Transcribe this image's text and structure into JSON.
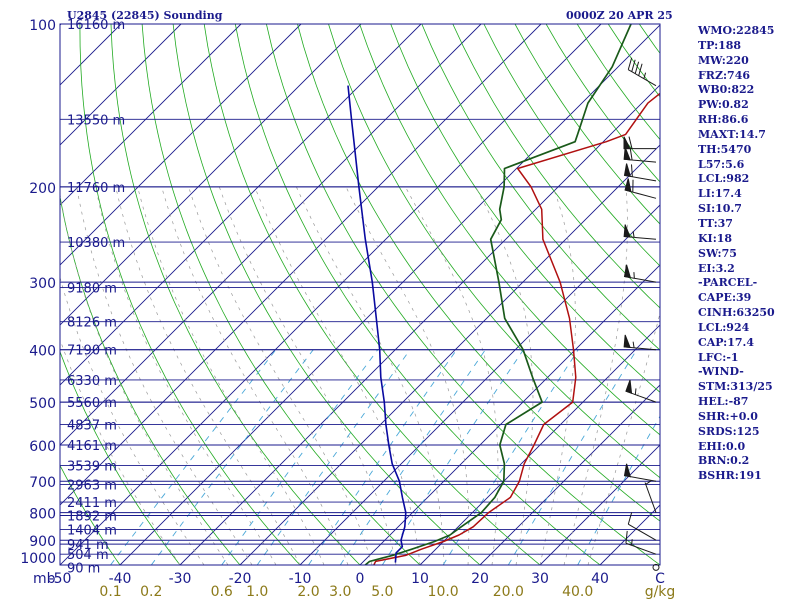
{
  "header": {
    "title": "U2845 (22845) Sounding",
    "time": "0000Z 20 APR 25"
  },
  "stats": [
    "WMO:22845",
    "TP:188",
    "MW:220",
    "FRZ:746",
    "WB0:822",
    "PW:0.82",
    "RH:86.6",
    "MAXT:14.7",
    "TH:5470",
    "L57:5.6",
    "LCL:982",
    "LI:17.4",
    "SI:10.7",
    "TT:37",
    "KI:18",
    "SW:75",
    "EI:3.2",
    "-PARCEL-",
    "CAPE:39",
    "CINH:63250",
    "LCL:924",
    "CAP:17.4",
    "LFC:-1",
    "-WIND-",
    "STM:313/25",
    "HEL:-87",
    "SHR:+0.0",
    "SRDS:125",
    "EHI:0.0",
    "BRN:0.2",
    "BSHR:191"
  ],
  "colors": {
    "background": "#ffffff",
    "isobar": "#1a1a8c",
    "isotherm": "#1a1a8c",
    "dry_adiabat": "#22aa22",
    "moist_adiabat": "#999999",
    "mixing_ratio": "#4aa8d8",
    "temperature": "#b01010",
    "dewpoint": "#1a5a1a",
    "parcel": "#0a0aa0",
    "axis_text": "#1a1a8c",
    "mixing_text": "#8c7a1a"
  },
  "chart_data": {
    "type": "line",
    "title": "U2845 (22845) Sounding",
    "subtitle": "0000Z 20 APR 25",
    "xlabel": "C",
    "pressure_unit": "mb",
    "mixing_ratio_unit": "g/kg",
    "xlim": [
      -50,
      50
    ],
    "ylim": [
      1000,
      100
    ],
    "pressure_ticks": [
      100,
      200,
      300,
      400,
      500,
      600,
      700,
      800,
      900,
      1000
    ],
    "temperature_ticks": [
      -50,
      -40,
      -30,
      -20,
      -10,
      0,
      10,
      20,
      30,
      40
    ],
    "temperature_tick_labels": [
      "-50",
      "-40",
      "-30",
      "-20",
      "-10",
      "0",
      "10",
      "20",
      "30",
      "40"
    ],
    "mixing_ratio_ticks": [
      0.1,
      0.2,
      0.6,
      1.0,
      2.0,
      3.0,
      5.0,
      10.0,
      20.0,
      40.0
    ],
    "mixing_ratio_labels": [
      "0.1",
      "0.2",
      "0.6",
      "1.0",
      "2.0",
      "3.0",
      "5.0",
      "10.0",
      "20.0",
      "40.0"
    ],
    "height_levels": [
      {
        "p": 1010,
        "label": "90 m"
      },
      {
        "p": 955,
        "label": "504 m"
      },
      {
        "p": 915,
        "label": "941 m"
      },
      {
        "p": 860,
        "label": "1404 m"
      },
      {
        "p": 810,
        "label": "1892 m"
      },
      {
        "p": 765,
        "label": "2411 m"
      },
      {
        "p": 710,
        "label": "2963 m"
      },
      {
        "p": 655,
        "label": "3539 m"
      },
      {
        "p": 600,
        "label": "4161 m"
      },
      {
        "p": 550,
        "label": "4837 m"
      },
      {
        "p": 500,
        "label": "5560 m"
      },
      {
        "p": 455,
        "label": "6330 m"
      },
      {
        "p": 400,
        "label": "7190 m"
      },
      {
        "p": 355,
        "label": "8126 m"
      },
      {
        "p": 307,
        "label": "9180 m"
      },
      {
        "p": 253,
        "label": "10380 m"
      },
      {
        "p": 200,
        "label": "11760 m"
      },
      {
        "p": 150,
        "label": "13550 m"
      },
      {
        "p": 100,
        "label": "16160 m"
      }
    ],
    "series": [
      {
        "key": "temperature",
        "points": [
          [
            1010,
            2.5
          ],
          [
            985,
            2.0
          ],
          [
            960,
            6.0
          ],
          [
            935,
            7.6
          ],
          [
            905,
            10.0
          ],
          [
            880,
            11.5
          ],
          [
            850,
            12.5
          ],
          [
            800,
            12.7
          ],
          [
            750,
            13.8
          ],
          [
            700,
            12.6
          ],
          [
            650,
            10.5
          ],
          [
            600,
            9.0
          ],
          [
            550,
            7.2
          ],
          [
            500,
            8.3
          ],
          [
            450,
            4.7
          ],
          [
            400,
            -0.3
          ],
          [
            350,
            -6.2
          ],
          [
            300,
            -13.8
          ],
          [
            250,
            -23.8
          ],
          [
            220,
            -29.0
          ],
          [
            200,
            -34.5
          ],
          [
            185,
            -39.8
          ],
          [
            165,
            -29.5
          ],
          [
            160,
            -27.5
          ],
          [
            140,
            -29.0
          ],
          [
            120,
            -27.5
          ],
          [
            100,
            -28.7
          ]
        ]
      },
      {
        "key": "dewpoint",
        "points": [
          [
            1010,
            0.8
          ],
          [
            985,
            1.0
          ],
          [
            960,
            3.8
          ],
          [
            935,
            6.0
          ],
          [
            905,
            8.5
          ],
          [
            880,
            10.0
          ],
          [
            850,
            10.5
          ],
          [
            800,
            11.5
          ],
          [
            750,
            11.2
          ],
          [
            700,
            10.0
          ],
          [
            650,
            7.2
          ],
          [
            600,
            3.3
          ],
          [
            550,
            0.9
          ],
          [
            500,
            3.2
          ],
          [
            450,
            -2.5
          ],
          [
            400,
            -8.7
          ],
          [
            350,
            -17.0
          ],
          [
            300,
            -24.0
          ],
          [
            250,
            -32.5
          ],
          [
            230,
            -34.0
          ],
          [
            220,
            -36.0
          ],
          [
            200,
            -39.0
          ],
          [
            185,
            -42.0
          ],
          [
            165,
            -34.7
          ],
          [
            160,
            -35.5
          ],
          [
            140,
            -39.0
          ],
          [
            120,
            -41.0
          ],
          [
            100,
            -45.0
          ]
        ]
      },
      {
        "key": "parcel",
        "points": [
          [
            990,
            5.5
          ],
          [
            950,
            4.0
          ],
          [
            925,
            4.0
          ],
          [
            900,
            2.7
          ],
          [
            850,
            1.1
          ],
          [
            800,
            -1.1
          ],
          [
            750,
            -4.2
          ],
          [
            700,
            -7.4
          ],
          [
            650,
            -11.5
          ],
          [
            600,
            -15.2
          ],
          [
            550,
            -19.1
          ],
          [
            500,
            -23.1
          ],
          [
            450,
            -27.8
          ],
          [
            400,
            -32.6
          ],
          [
            350,
            -38.4
          ],
          [
            300,
            -45.1
          ],
          [
            250,
            -53.4
          ],
          [
            200,
            -63.2
          ],
          [
            150,
            -75.7
          ],
          [
            130,
            -81.9
          ]
        ]
      }
    ],
    "wind_barbs": [
      {
        "p": 1010,
        "speed_kt": 0,
        "calm": true
      },
      {
        "p": 955,
        "dir": 290,
        "speed_kt": 15
      },
      {
        "p": 900,
        "dir": 300,
        "speed_kt": 10
      },
      {
        "p": 800,
        "dir": 340,
        "speed_kt": 5
      },
      {
        "p": 700,
        "dir": 280,
        "speed_kt": 50
      },
      {
        "p": 500,
        "dir": 290,
        "speed_kt": 55
      },
      {
        "p": 400,
        "dir": 275,
        "speed_kt": 55
      },
      {
        "p": 300,
        "dir": 280,
        "speed_kt": 55
      },
      {
        "p": 250,
        "dir": 275,
        "speed_kt": 55
      },
      {
        "p": 210,
        "dir": 285,
        "speed_kt": 60
      },
      {
        "p": 195,
        "dir": 280,
        "speed_kt": 60
      },
      {
        "p": 180,
        "dir": 275,
        "speed_kt": 60
      },
      {
        "p": 170,
        "dir": 270,
        "speed_kt": 60
      },
      {
        "p": 130,
        "dir": 300,
        "speed_kt": 45
      }
    ]
  }
}
